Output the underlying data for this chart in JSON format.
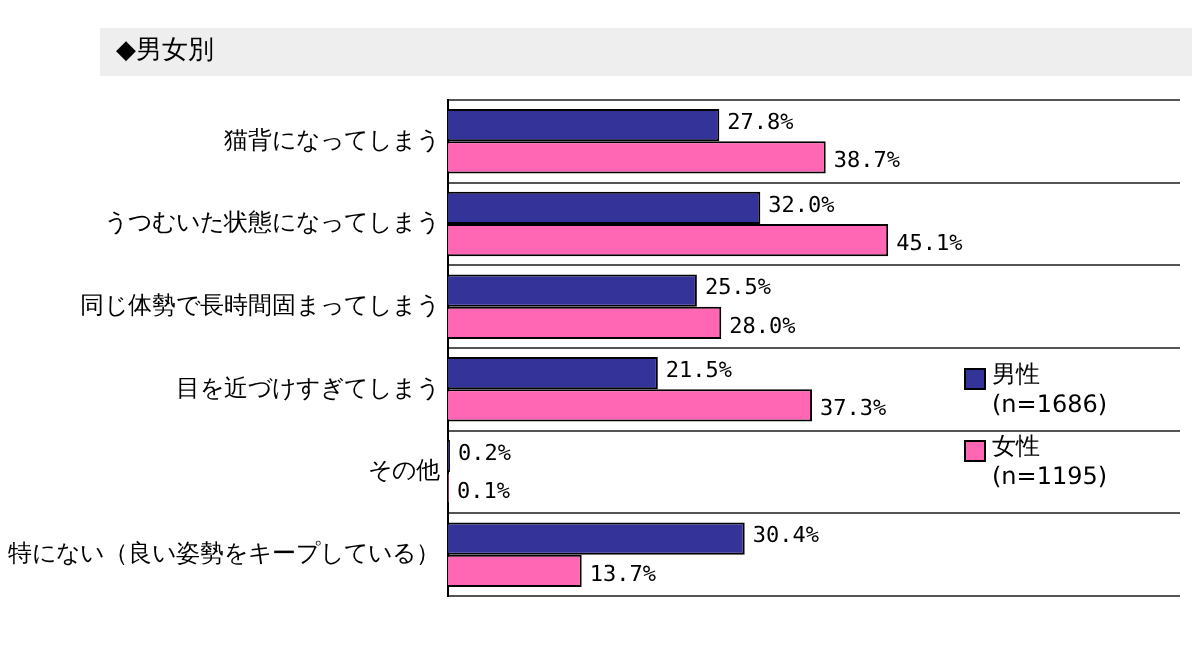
{
  "chart_data": {
    "type": "bar",
    "orientation": "horizontal",
    "title": "◆男女別",
    "categories": [
      "猫背になってしまう",
      "うつむいた状態になってしまう",
      "同じ体勢で長時間固まってしまう",
      "目を近づけすぎてしまう",
      "その他",
      "特にない（良い姿勢をキープしている）"
    ],
    "series": [
      {
        "name": "男性\n(n=1686)",
        "color": "#333399",
        "values": [
          27.8,
          32.0,
          25.5,
          21.5,
          0.2,
          30.4
        ],
        "value_labels": [
          "27.8%",
          "32.0%",
          "25.5%",
          "21.5%",
          "0.2%",
          "30.4%"
        ]
      },
      {
        "name": "女性\n(n=1195)",
        "color": "#ff66b3",
        "values": [
          38.7,
          45.1,
          28.0,
          37.3,
          0.1,
          13.7
        ],
        "value_labels": [
          "38.7%",
          "45.1%",
          "28.0%",
          "37.3%",
          "0.1%",
          "13.7%"
        ]
      }
    ],
    "xlim": [
      0,
      75
    ],
    "tick_labels": "y",
    "grid": "y",
    "legend": "right"
  }
}
